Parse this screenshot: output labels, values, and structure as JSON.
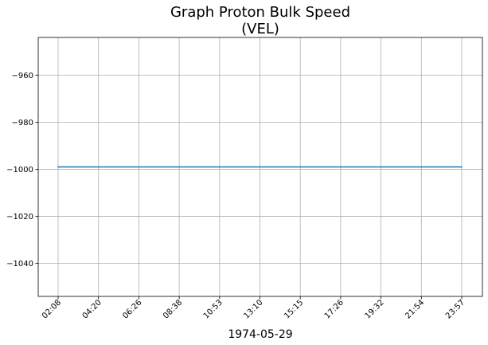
{
  "chart_data": {
    "type": "line",
    "title": "Graph Proton Bulk Speed",
    "subtitle": "(VEL)",
    "xlabel": "1974-05-29",
    "ylabel": "",
    "x_tick_labels": [
      "02:08",
      "04:20",
      "06:26",
      "08:38",
      "10:53",
      "13:10",
      "15:15",
      "17:26",
      "19:32",
      "21:54",
      "23:57"
    ],
    "y_ticks": [
      -1040,
      -1020,
      -1000,
      -980,
      -960
    ],
    "y_tick_labels": [
      "−1040",
      "−1020",
      "−1000",
      "−980",
      "−960"
    ],
    "ylim": [
      -1054,
      -944
    ],
    "grid": true,
    "series": [
      {
        "color": "#1f77b4",
        "x": [
          "02:08",
          "04:20",
          "06:26",
          "08:38",
          "10:53",
          "13:10",
          "15:15",
          "17:26",
          "19:32",
          "21:54",
          "23:57"
        ],
        "values": [
          -999,
          -999,
          -999,
          -999,
          -999,
          -999,
          -999,
          -999,
          -999,
          -999,
          -999
        ]
      }
    ]
  }
}
